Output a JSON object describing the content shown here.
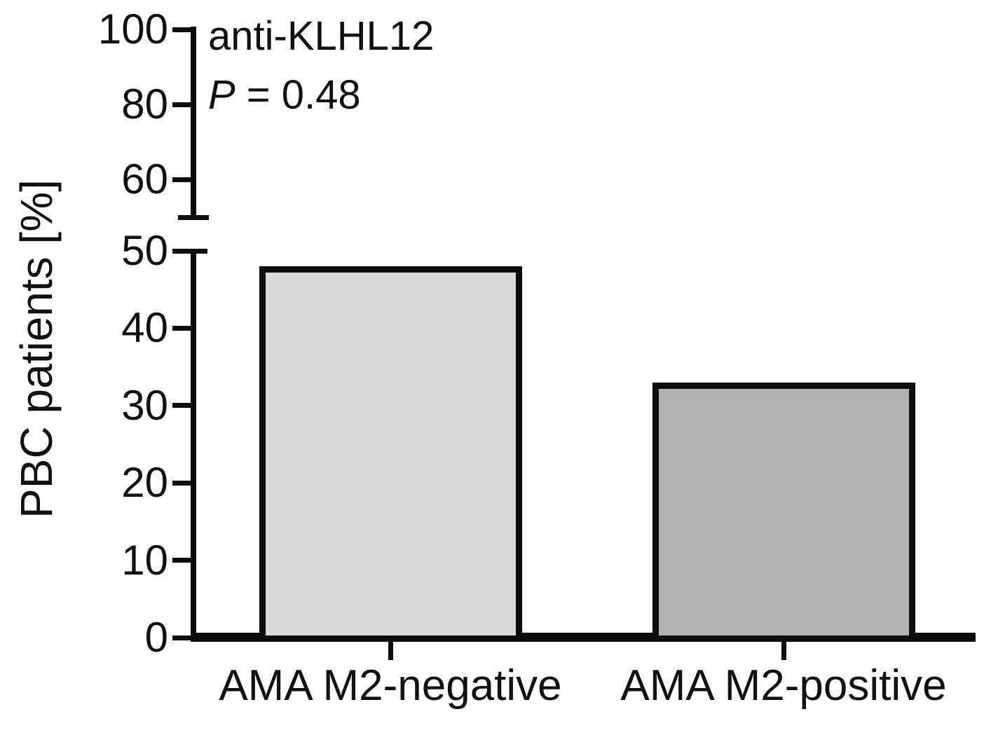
{
  "chart_data": {
    "type": "bar",
    "title": "anti-KLHL12",
    "annotation": {
      "title": "anti-KLHL12",
      "p_label": "P",
      "p_rest": " = 0.48"
    },
    "ylabel": "PBC patients [%]",
    "xlabel": "",
    "categories": [
      "AMA M2-negative",
      "AMA M2-positive"
    ],
    "values": [
      48,
      33
    ],
    "bar_fills": [
      "#d9d9d9",
      "#b3b3b3"
    ],
    "bar_border_color": "#0d0d0d",
    "axis_color": "#0d0d0d",
    "ylim": [
      0,
      100
    ],
    "grid": false,
    "legend_position": "none",
    "y_axis": {
      "broken": true,
      "lower_segment": {
        "range": [
          0,
          50
        ],
        "ticks": [
          0,
          10,
          20,
          30,
          40,
          50
        ]
      },
      "upper_segment": {
        "range": [
          50,
          100
        ],
        "ticks": [
          60,
          80,
          100
        ]
      }
    }
  }
}
